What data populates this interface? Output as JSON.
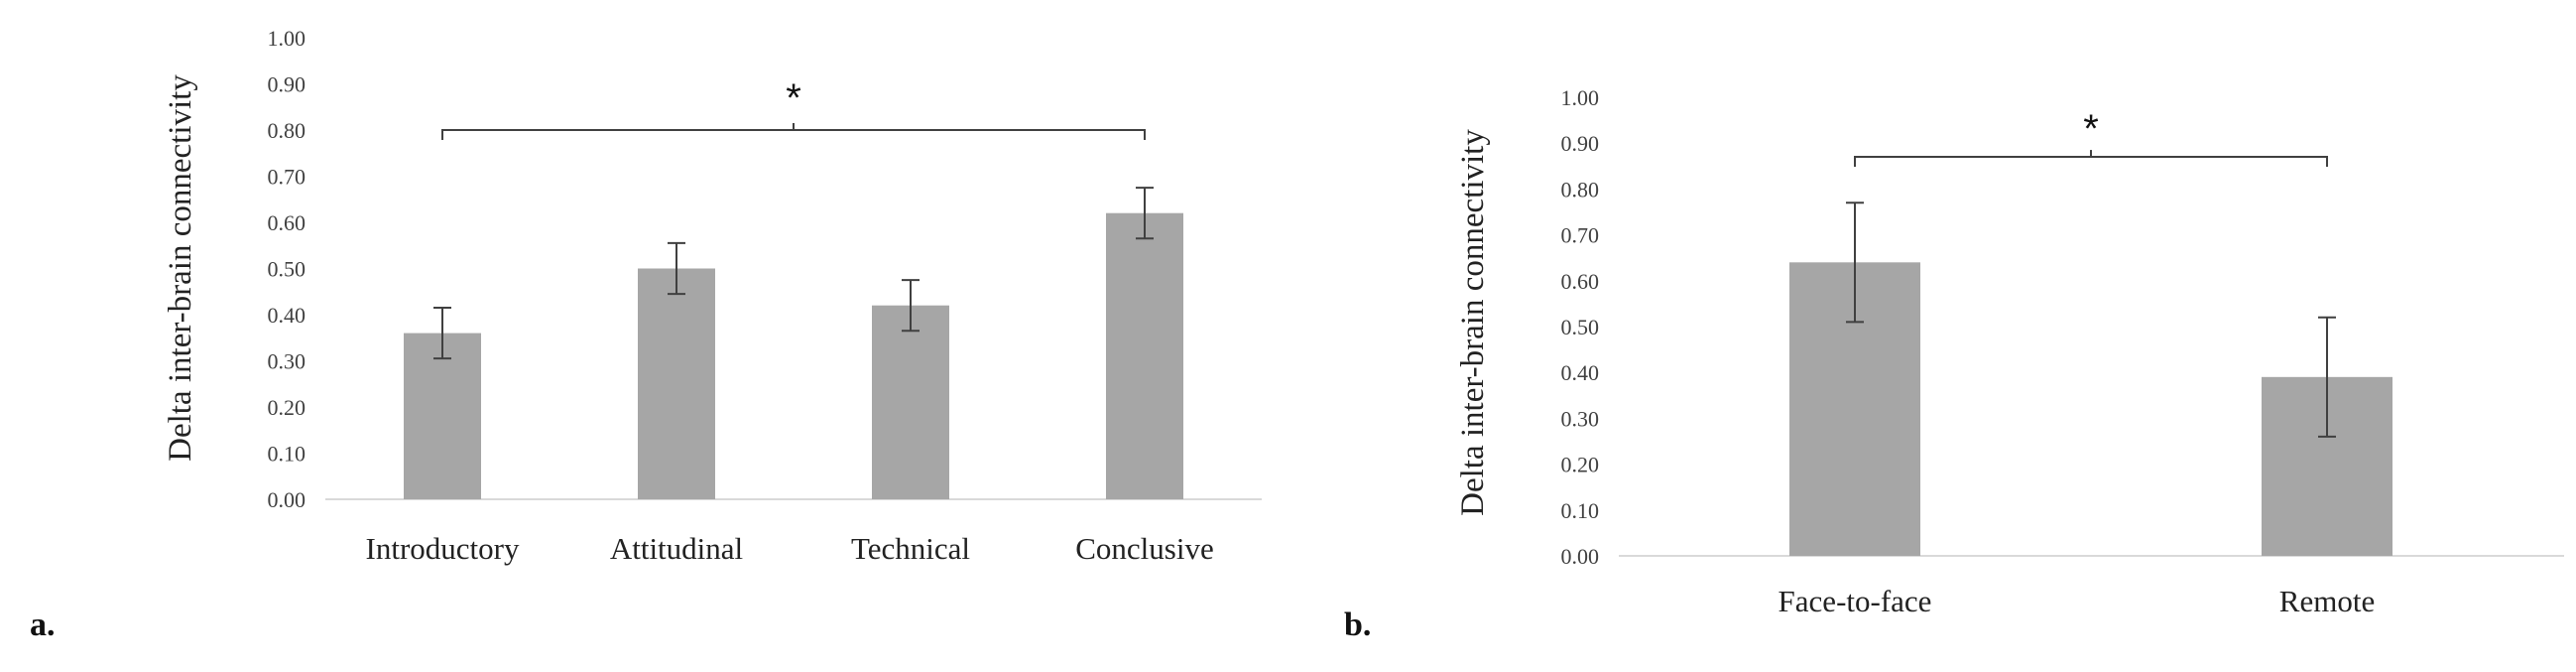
{
  "chart_data": [
    {
      "type": "bar",
      "panel_label": "a.",
      "ylabel": "Delta inter-brain connectivity",
      "ylim": [
        0,
        1.0
      ],
      "ytick_step": 0.1,
      "ytick_labels": [
        "0.00",
        "0.10",
        "0.20",
        "0.30",
        "0.40",
        "0.50",
        "0.60",
        "0.70",
        "0.80",
        "0.90",
        "1.00"
      ],
      "categories": [
        "Introductory",
        "Attitudinal",
        "Technical",
        "Conclusive"
      ],
      "values": [
        0.36,
        0.5,
        0.42,
        0.62
      ],
      "error": [
        0.055,
        0.055,
        0.055,
        0.055
      ],
      "significance": {
        "from": 0,
        "to": 3,
        "y": 0.8,
        "label": "*"
      },
      "bar_color": "#a6a6a6",
      "grid": false
    },
    {
      "type": "bar",
      "panel_label": "b.",
      "ylabel": "Delta inter-brain connectivity",
      "ylim": [
        0,
        1.0
      ],
      "ytick_step": 0.1,
      "ytick_labels": [
        "0.00",
        "0.10",
        "0.20",
        "0.30",
        "0.40",
        "0.50",
        "0.60",
        "0.70",
        "0.80",
        "0.90",
        "1.00"
      ],
      "categories": [
        "Face-to-face",
        "Remote"
      ],
      "values": [
        0.64,
        0.39
      ],
      "error": [
        0.13,
        0.13
      ],
      "significance": {
        "from": 0,
        "to": 1,
        "y": 0.87,
        "label": "*"
      },
      "bar_color": "#a6a6a6",
      "grid": false
    }
  ]
}
